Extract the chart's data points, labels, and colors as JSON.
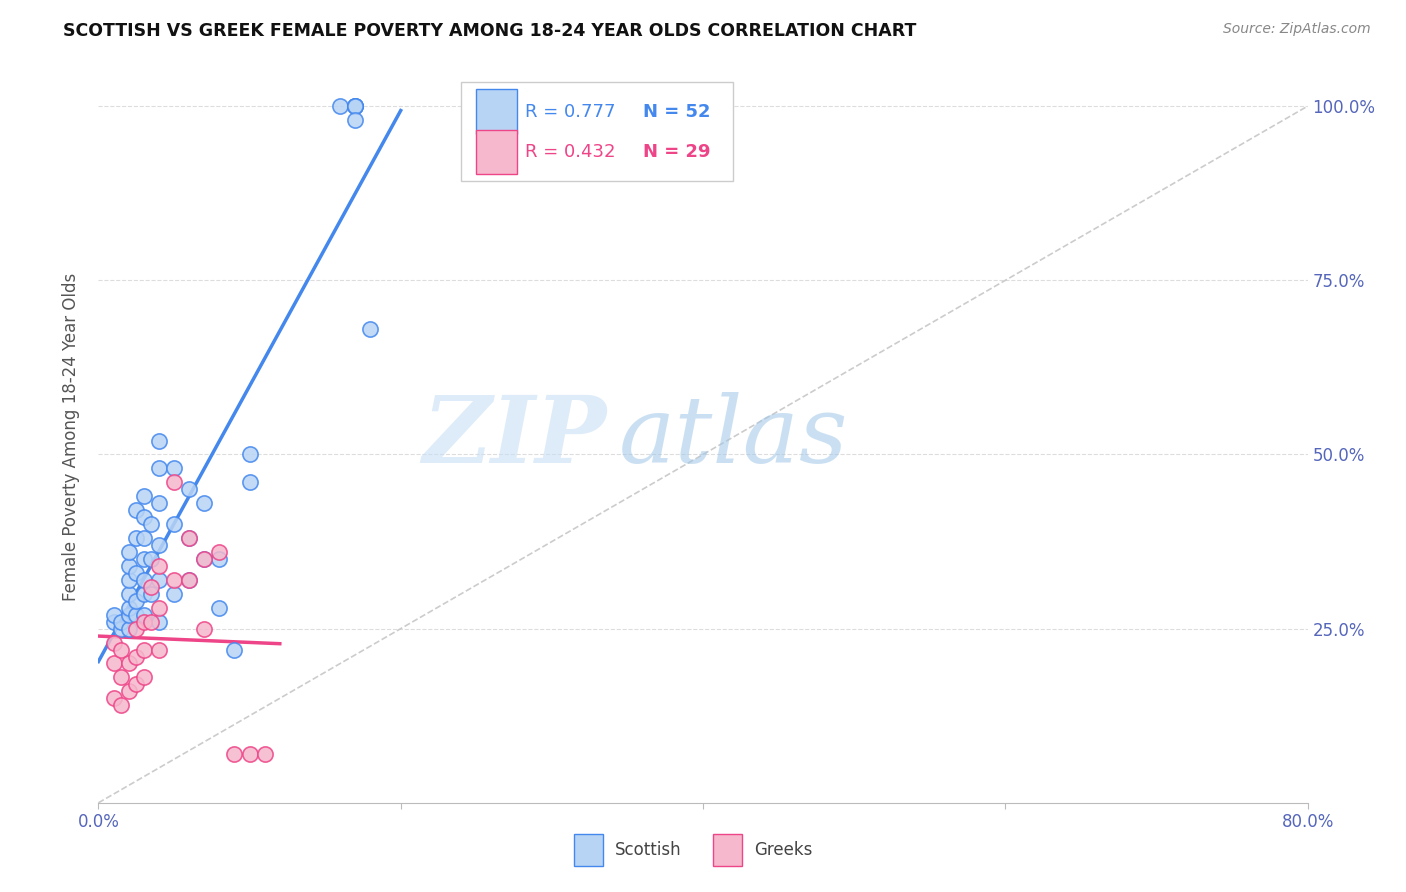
{
  "title": "SCOTTISH VS GREEK FEMALE POVERTY AMONG 18-24 YEAR OLDS CORRELATION CHART",
  "source": "Source: ZipAtlas.com",
  "ylabel": "Female Poverty Among 18-24 Year Olds",
  "ytick_positions": [
    0.0,
    0.25,
    0.5,
    0.75,
    1.0
  ],
  "ytick_labels": [
    "",
    "25.0%",
    "50.0%",
    "75.0%",
    "100.0%"
  ],
  "xlim": [
    0.0,
    0.8
  ],
  "ylim": [
    0.0,
    1.05
  ],
  "legend_R_scottish": "R = 0.777",
  "legend_N_scottish": "N = 52",
  "legend_R_greeks": "R = 0.432",
  "legend_N_greeks": "N = 29",
  "scottish_color": "#b8d4f5",
  "greeks_color": "#f5b8cc",
  "scottish_line_color": "#4488ee",
  "greeks_line_color": "#ee4488",
  "diagonal_color": "#cccccc",
  "watermark_zip": "ZIP",
  "watermark_atlas": "atlas",
  "scottish_x": [
    0.01,
    0.01,
    0.015,
    0.015,
    0.02,
    0.02,
    0.02,
    0.02,
    0.02,
    0.02,
    0.02,
    0.025,
    0.025,
    0.025,
    0.025,
    0.025,
    0.03,
    0.03,
    0.03,
    0.03,
    0.03,
    0.03,
    0.03,
    0.035,
    0.035,
    0.035,
    0.04,
    0.04,
    0.04,
    0.04,
    0.04,
    0.04,
    0.05,
    0.05,
    0.05,
    0.06,
    0.06,
    0.06,
    0.07,
    0.07,
    0.08,
    0.08,
    0.09,
    0.1,
    0.1,
    0.16,
    0.17,
    0.17,
    0.17,
    0.17,
    0.17,
    0.18
  ],
  "scottish_y": [
    0.26,
    0.27,
    0.25,
    0.26,
    0.25,
    0.27,
    0.28,
    0.3,
    0.32,
    0.34,
    0.36,
    0.27,
    0.29,
    0.33,
    0.38,
    0.42,
    0.27,
    0.3,
    0.32,
    0.35,
    0.38,
    0.41,
    0.44,
    0.3,
    0.35,
    0.4,
    0.26,
    0.32,
    0.37,
    0.43,
    0.48,
    0.52,
    0.3,
    0.4,
    0.48,
    0.32,
    0.38,
    0.45,
    0.35,
    0.43,
    0.28,
    0.35,
    0.22,
    0.46,
    0.5,
    1.0,
    1.0,
    1.0,
    1.0,
    1.0,
    0.98,
    0.68
  ],
  "greeks_x": [
    0.01,
    0.01,
    0.01,
    0.015,
    0.015,
    0.015,
    0.02,
    0.02,
    0.025,
    0.025,
    0.025,
    0.03,
    0.03,
    0.03,
    0.035,
    0.035,
    0.04,
    0.04,
    0.04,
    0.05,
    0.05,
    0.06,
    0.06,
    0.07,
    0.07,
    0.08,
    0.09,
    0.1,
    0.11
  ],
  "greeks_y": [
    0.15,
    0.2,
    0.23,
    0.14,
    0.18,
    0.22,
    0.16,
    0.2,
    0.17,
    0.21,
    0.25,
    0.18,
    0.22,
    0.26,
    0.26,
    0.31,
    0.22,
    0.28,
    0.34,
    0.32,
    0.46,
    0.32,
    0.38,
    0.25,
    0.35,
    0.36,
    0.07,
    0.07,
    0.07
  ],
  "scottish_line_x0": 0.0,
  "scottish_line_x1": 0.2,
  "greeks_line_x0": 0.0,
  "greeks_line_x1": 0.12
}
